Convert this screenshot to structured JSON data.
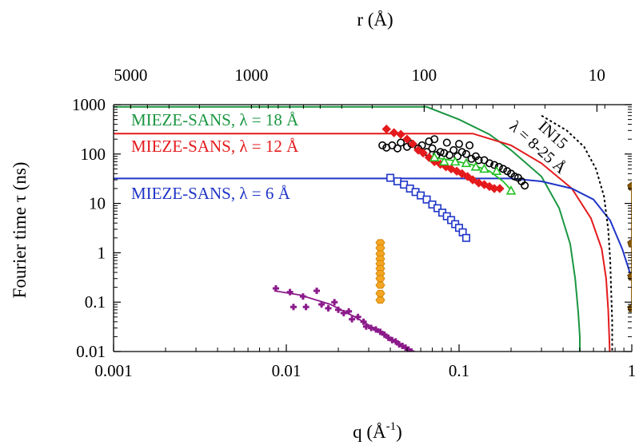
{
  "chart_data": {
    "type": "scatter",
    "xlabel": "q (Å",
    "xlabel_exp": "-1",
    "xlabel_close": ")",
    "ylabel": "Fourier time τ (ns)",
    "top_label": "r (Å)",
    "xscale": "log",
    "yscale": "log",
    "xlim": [
      0.001,
      1.0
    ],
    "ylim": [
      0.01,
      1000
    ],
    "x_ticks": [
      "0.001",
      "0.01",
      "0.1",
      "1"
    ],
    "y_ticks": [
      "0.01",
      "0.1",
      "1",
      "10",
      "100",
      "1000"
    ],
    "top_ticks": [
      "5000",
      "1000",
      "100",
      "10"
    ],
    "top_tick_values": [
      5000,
      1000,
      100,
      10
    ],
    "annotation": {
      "line1": "IN15",
      "line2": "λ = 8-25 Å"
    },
    "lines": [
      {
        "name": "MIEZE-SANS, λ = 18 Å",
        "color": "#1a9641",
        "x": [
          0.001,
          0.065,
          0.1,
          0.15,
          0.2,
          0.3,
          0.38,
          0.44,
          0.47,
          0.49,
          0.5,
          0.5
        ],
        "y": [
          900,
          900,
          500,
          250,
          120,
          35,
          8,
          1.5,
          0.3,
          0.06,
          0.02,
          0.01
        ]
      },
      {
        "name": "MIEZE-SANS, λ = 12 Å",
        "color": "#e41a1c",
        "x": [
          0.001,
          0.12,
          0.2,
          0.3,
          0.45,
          0.58,
          0.67,
          0.71,
          0.73,
          0.74,
          0.745
        ],
        "y": [
          260,
          260,
          150,
          65,
          20,
          5,
          1.2,
          0.3,
          0.07,
          0.02,
          0.01
        ]
      },
      {
        "name": "MIEZE-SANS, λ = 6 Å",
        "color": "#1f35c8",
        "x": [
          0.001,
          0.2,
          0.3,
          0.45,
          0.6,
          0.75,
          0.88,
          1.0
        ],
        "y": [
          32,
          32,
          28,
          20,
          12,
          4.5,
          1.2,
          0.3
        ]
      }
    ],
    "in15_curve": {
      "x": [
        0.3,
        0.42,
        0.53,
        0.62,
        0.69,
        0.73,
        0.75,
        0.76,
        0.77,
        0.77
      ],
      "y": [
        600,
        300,
        140,
        50,
        14,
        3,
        0.7,
        0.15,
        0.04,
        0.01
      ]
    },
    "series": [
      {
        "name": "",
        "color": "#000000",
        "marker": "circle",
        "x": [
          0.036,
          0.038,
          0.041,
          0.044,
          0.046,
          0.05,
          0.053,
          0.058,
          0.061,
          0.065,
          0.07,
          0.074,
          0.078,
          0.082,
          0.088,
          0.093,
          0.098,
          0.104,
          0.11,
          0.118,
          0.125,
          0.13,
          0.14,
          0.15,
          0.16,
          0.17,
          0.18,
          0.19,
          0.2,
          0.21,
          0.22,
          0.23,
          0.24,
          0.067,
          0.072,
          0.085,
          0.1,
          0.115
        ],
        "y": [
          150,
          135,
          150,
          130,
          170,
          140,
          160,
          130,
          150,
          110,
          130,
          95,
          110,
          105,
          95,
          120,
          90,
          110,
          100,
          80,
          90,
          75,
          75,
          65,
          60,
          55,
          50,
          45,
          40,
          35,
          33,
          28,
          23,
          180,
          200,
          170,
          160,
          150
        ]
      },
      {
        "name": "",
        "color": "#e41a1c",
        "marker": "diamond",
        "x": [
          0.038,
          0.042,
          0.046,
          0.05,
          0.054,
          0.058,
          0.062,
          0.067,
          0.072,
          0.078,
          0.084,
          0.09,
          0.097,
          0.104,
          0.112,
          0.12,
          0.13,
          0.14,
          0.15,
          0.16,
          0.172
        ],
        "y": [
          320,
          270,
          250,
          200,
          160,
          120,
          105,
          85,
          70,
          62,
          55,
          50,
          45,
          40,
          35,
          30,
          26,
          24,
          22,
          20,
          20
        ]
      },
      {
        "name": "",
        "color": "#22c022",
        "marker": "triangle",
        "x": [
          0.072,
          0.082,
          0.095,
          0.11,
          0.125,
          0.14,
          0.165,
          0.2
        ],
        "y": [
          85,
          70,
          70,
          65,
          55,
          50,
          45,
          18
        ],
        "fit_x": [
          0.07,
          0.09,
          0.12,
          0.15,
          0.18,
          0.205
        ],
        "fit_y": [
          85,
          75,
          60,
          45,
          28,
          17
        ]
      },
      {
        "name": "",
        "color": "#1f35c8",
        "marker": "square",
        "x": [
          0.04,
          0.044,
          0.048,
          0.052,
          0.056,
          0.06,
          0.065,
          0.07,
          0.075,
          0.08,
          0.085,
          0.09,
          0.095,
          0.1,
          0.105,
          0.11
        ],
        "y": [
          33,
          28,
          24,
          20,
          17,
          14.5,
          12,
          9.5,
          8,
          6.5,
          5.5,
          4.6,
          3.8,
          3.2,
          2.6,
          2.0
        ]
      },
      {
        "name": "",
        "color": "#f5a623",
        "marker": "hexagon",
        "x": [
          0.035,
          0.035,
          0.035,
          0.035,
          0.035,
          0.035,
          0.035,
          0.035,
          0.035,
          0.035,
          0.035
        ],
        "y": [
          1.6,
          1.25,
          0.95,
          0.75,
          0.6,
          0.48,
          0.38,
          0.3,
          0.22,
          0.15,
          0.11
        ]
      },
      {
        "name": "",
        "color": "#8b1a8b",
        "marker": "cross",
        "x": [
          0.0087,
          0.0105,
          0.011,
          0.0125,
          0.013,
          0.015,
          0.016,
          0.0175,
          0.019,
          0.02,
          0.0215,
          0.023,
          0.024,
          0.026,
          0.028,
          0.029,
          0.031,
          0.033,
          0.035,
          0.037,
          0.039,
          0.041,
          0.043,
          0.045,
          0.047,
          0.049,
          0.051,
          0.053
        ],
        "y": [
          0.19,
          0.16,
          0.08,
          0.13,
          0.08,
          0.17,
          0.09,
          0.075,
          0.1,
          0.07,
          0.06,
          0.065,
          0.045,
          0.05,
          0.04,
          0.032,
          0.03,
          0.028,
          0.025,
          0.022,
          0.019,
          0.017,
          0.016,
          0.014,
          0.013,
          0.012,
          0.011,
          0.01
        ],
        "fit_x": [
          0.0085,
          0.012,
          0.018,
          0.025,
          0.035,
          0.045,
          0.055
        ],
        "fit_y": [
          0.17,
          0.14,
          0.09,
          0.05,
          0.025,
          0.014,
          0.009
        ]
      },
      {
        "name": "",
        "color": "#8b5a00",
        "marker": "pentagon",
        "errorbar": true,
        "x": [
          1.0,
          1.0,
          1.0,
          1.0
        ],
        "y": [
          22,
          1.55,
          0.33,
          0.075
        ]
      }
    ]
  }
}
